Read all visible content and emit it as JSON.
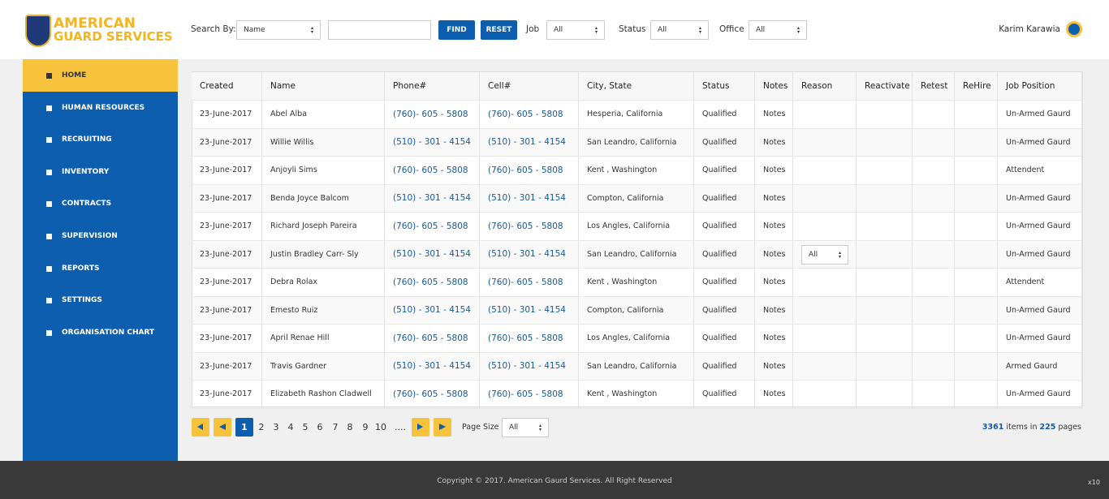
{
  "header": {
    "logo_line1": "AMERICAN",
    "logo_line2": "GUARD SERVICES",
    "search_by": "Search By:",
    "search_select": "Name",
    "find": "FIND",
    "reset": "RESET",
    "job_label": "Job",
    "job_select": "All",
    "status_label": "Status",
    "status_select": "All",
    "office_label": "Office",
    "office_select": "All",
    "user": "Karim Karawia"
  },
  "nav": [
    "HOME",
    "HUMAN RESOURCES",
    "RECRUITING",
    "INVENTORY",
    "CONTRACTS",
    "SUPERVISION",
    "REPORTS",
    "SETTINGS",
    "ORGANISATION CHART"
  ],
  "table": {
    "columns": [
      "Created",
      "Name",
      "Phone#",
      "Cell#",
      "City, State",
      "Status",
      "Notes",
      "Reason",
      "Reactivate",
      "Retest",
      "ReHire",
      "Job Position"
    ],
    "rows": [
      {
        "created": "23-June-2017",
        "name": "Abel Alba",
        "phone": "(760)- 605 - 5808",
        "cell": "(760)- 605 - 5808",
        "city": "Hesperia, California",
        "status": "Qualified",
        "notes": "Notes",
        "job": "Un-Armed Gaurd"
      },
      {
        "created": "23-June-2017",
        "name": "Willie Willis",
        "phone": "(510) - 301 - 4154",
        "cell": "(510) - 301 - 4154",
        "city": "San Leandro, California",
        "status": "Qualified",
        "notes": "Notes",
        "job": "Un-Armed Gaurd"
      },
      {
        "created": "23-June-2017",
        "name": "Anjoyli Sims",
        "phone": "(760)- 605 - 5808",
        "cell": "(760)- 605 - 5808",
        "city": "Kent , Washington",
        "status": "Qualified",
        "notes": "Notes",
        "job": "Attendent"
      },
      {
        "created": "23-June-2017",
        "name": "Benda Joyce Balcom",
        "phone": "(510) - 301 - 4154",
        "cell": "(510) - 301 - 4154",
        "city": "Compton, California",
        "status": "Qualified",
        "notes": "Notes",
        "job": "Un-Armed Gaurd"
      },
      {
        "created": "23-June-2017",
        "name": "Richard Joseph Pareira",
        "phone": "(760)- 605 - 5808",
        "cell": "(760)- 605 - 5808",
        "city": "Los Angles, California",
        "status": "Qualified",
        "notes": "Notes",
        "job": "Un-Armed Gaurd"
      },
      {
        "created": "23-June-2017",
        "name": "Justin Bradley Carr- Sly",
        "phone": "(510) - 301 - 4154",
        "cell": "(510) - 301 - 4154",
        "city": "San Leandro, California",
        "status": "Qualified",
        "notes": "Notes",
        "reason": "All",
        "job": "Un-Armed Gaurd"
      },
      {
        "created": "23-June-2017",
        "name": "Debra Rolax",
        "phone": "(760)- 605 - 5808",
        "cell": "(760)- 605 - 5808",
        "city": "Kent , Washington",
        "status": "Qualified",
        "notes": "Notes",
        "job": "Attendent"
      },
      {
        "created": "23-June-2017",
        "name": "Emesto Ruiz",
        "phone": "(510) - 301 - 4154",
        "cell": "(510) - 301 - 4154",
        "city": "Compton, California",
        "status": "Qualified",
        "notes": "Notes",
        "job": "Un-Armed Gaurd"
      },
      {
        "created": "23-June-2017",
        "name": "April Renae Hill",
        "phone": "(760)- 605 - 5808",
        "cell": "(760)- 605 - 5808",
        "city": "Los Angles, California",
        "status": "Qualified",
        "notes": "Notes",
        "job": "Un-Armed Gaurd"
      },
      {
        "created": "23-June-2017",
        "name": "Travis Gardner",
        "phone": "(510) - 301 - 4154",
        "cell": "(510) - 301 - 4154",
        "city": "San Leandro, California",
        "status": "Qualified",
        "notes": "Notes",
        "job": "Armed Gaurd"
      },
      {
        "created": "23-June-2017",
        "name": "Elizabeth Rashon Cladwell",
        "phone": "(760)- 605 - 5808",
        "cell": "(760)- 605 - 5808",
        "city": "Kent , Washington",
        "status": "Qualified",
        "notes": "Notes",
        "job": "Un-Armed Gaurd"
      }
    ]
  },
  "pagination": {
    "pages": [
      "1",
      "2",
      "3",
      "4",
      "5",
      "6",
      "7",
      "8",
      "9",
      "10",
      "...."
    ],
    "page_size_label": "Page Size",
    "page_size": "All",
    "items": "3361",
    "items_in": "items in",
    "pages_count": "225",
    "pages_word": "pages"
  },
  "footer": {
    "copyright": "Copyright © 2017. American Gaurd Services. All Right Reserved",
    "zoom": "x10"
  }
}
